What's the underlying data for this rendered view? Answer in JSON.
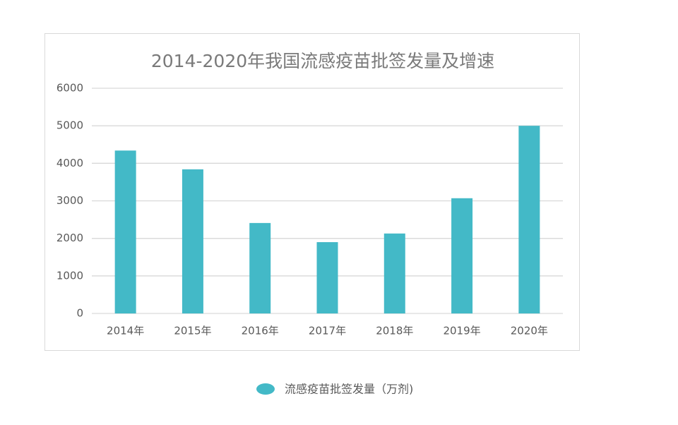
{
  "chart_data": {
    "type": "bar",
    "title": "2014-2020年我国流感疫苗批签发量及增速",
    "categories": [
      "2014年",
      "2015年",
      "2016年",
      "2017年",
      "2018年",
      "2019年",
      "2020年"
    ],
    "series": [
      {
        "name": "流感疫苗批签发量（万剂)",
        "color": "#43b9c7",
        "values": [
          4340,
          3840,
          2410,
          1900,
          2130,
          3070,
          5000
        ]
      }
    ],
    "ylim": [
      0,
      6000
    ],
    "yticks": [
      0,
      1000,
      2000,
      3000,
      4000,
      5000,
      6000
    ],
    "grid": true,
    "legend": "bottom"
  }
}
